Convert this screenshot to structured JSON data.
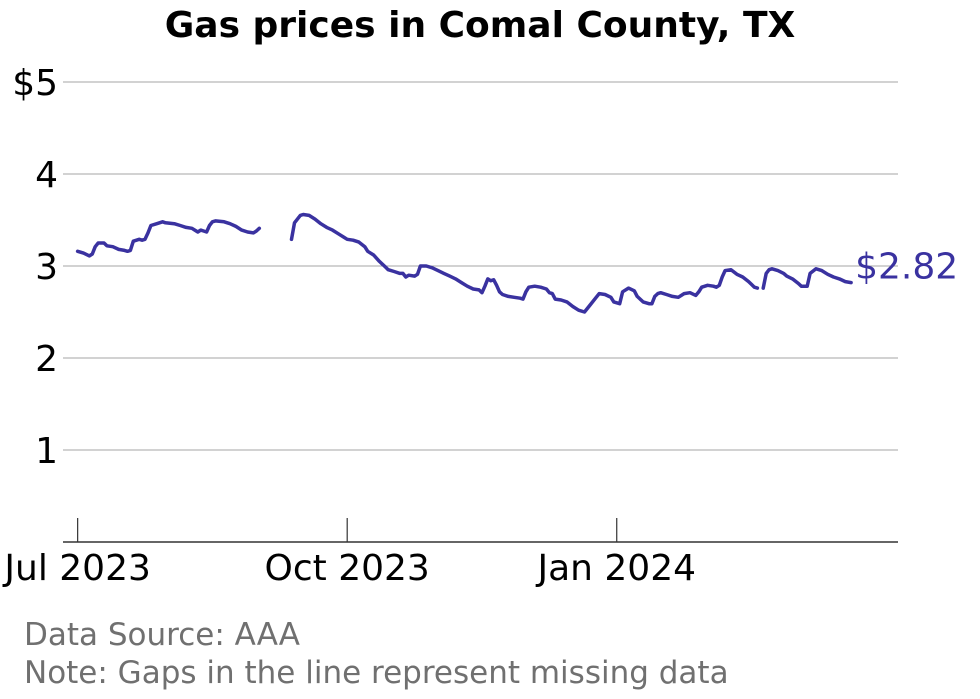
{
  "chart_data": {
    "type": "line",
    "title": "Gas prices in Comal County, TX",
    "xlabel": "",
    "ylabel": "",
    "ylim": [
      0,
      5
    ],
    "xlim": [
      "2023-06-26",
      "2024-04-06"
    ],
    "y_ticks": [
      {
        "value": 1,
        "label": "1"
      },
      {
        "value": 2,
        "label": "2"
      },
      {
        "value": 3,
        "label": "3"
      },
      {
        "value": 4,
        "label": "4"
      },
      {
        "value": 5,
        "label": "$5"
      }
    ],
    "x_ticks": [
      {
        "date": "2023-07-01",
        "label": "Jul 2023"
      },
      {
        "date": "2023-10-01",
        "label": "Oct 2023"
      },
      {
        "date": "2024-01-01",
        "label": "Jan 2024"
      }
    ],
    "grid": true,
    "color": "#3a32a0",
    "end_label": "$2.82",
    "series": [
      {
        "segments": [
          [
            [
              "2023-07-01",
              3.16
            ],
            [
              "2023-07-03",
              3.14
            ],
            [
              "2023-07-05",
              3.11
            ],
            [
              "2023-07-06",
              3.13
            ],
            [
              "2023-07-07",
              3.21
            ],
            [
              "2023-07-08",
              3.25
            ],
            [
              "2023-07-10",
              3.25
            ],
            [
              "2023-07-11",
              3.22
            ],
            [
              "2023-07-13",
              3.21
            ],
            [
              "2023-07-15",
              3.18
            ],
            [
              "2023-07-17",
              3.17
            ],
            [
              "2023-07-18",
              3.16
            ],
            [
              "2023-07-19",
              3.17
            ],
            [
              "2023-07-20",
              3.27
            ],
            [
              "2023-07-22",
              3.29
            ],
            [
              "2023-07-23",
              3.28
            ],
            [
              "2023-07-24",
              3.29
            ],
            [
              "2023-07-25",
              3.36
            ],
            [
              "2023-07-26",
              3.44
            ],
            [
              "2023-07-28",
              3.46
            ],
            [
              "2023-07-30",
              3.48
            ],
            [
              "2023-07-31",
              3.47
            ],
            [
              "2023-08-03",
              3.46
            ],
            [
              "2023-08-05",
              3.44
            ],
            [
              "2023-08-07",
              3.42
            ],
            [
              "2023-08-09",
              3.41
            ],
            [
              "2023-08-10",
              3.39
            ],
            [
              "2023-08-11",
              3.37
            ],
            [
              "2023-08-12",
              3.39
            ],
            [
              "2023-08-13",
              3.38
            ],
            [
              "2023-08-14",
              3.37
            ],
            [
              "2023-08-15",
              3.44
            ],
            [
              "2023-08-16",
              3.48
            ],
            [
              "2023-08-17",
              3.49
            ],
            [
              "2023-08-20",
              3.48
            ],
            [
              "2023-08-22",
              3.46
            ],
            [
              "2023-08-24",
              3.43
            ],
            [
              "2023-08-26",
              3.39
            ],
            [
              "2023-08-28",
              3.37
            ],
            [
              "2023-08-30",
              3.36
            ],
            [
              "2023-08-31",
              3.38
            ],
            [
              "2023-09-01",
              3.41
            ]
          ],
          [
            [
              "2023-09-12",
              3.29
            ],
            [
              "2023-09-13",
              3.47
            ],
            [
              "2023-09-15",
              3.55
            ],
            [
              "2023-09-16",
              3.56
            ],
            [
              "2023-09-18",
              3.55
            ],
            [
              "2023-09-20",
              3.51
            ],
            [
              "2023-09-22",
              3.46
            ],
            [
              "2023-09-24",
              3.42
            ],
            [
              "2023-09-26",
              3.39
            ],
            [
              "2023-09-28",
              3.35
            ],
            [
              "2023-09-30",
              3.31
            ],
            [
              "2023-10-01",
              3.29
            ],
            [
              "2023-10-03",
              3.28
            ],
            [
              "2023-10-05",
              3.26
            ],
            [
              "2023-10-07",
              3.21
            ],
            [
              "2023-10-08",
              3.16
            ],
            [
              "2023-10-10",
              3.12
            ],
            [
              "2023-10-12",
              3.05
            ],
            [
              "2023-10-14",
              2.99
            ],
            [
              "2023-10-15",
              2.96
            ],
            [
              "2023-10-17",
              2.94
            ],
            [
              "2023-10-19",
              2.92
            ],
            [
              "2023-10-20",
              2.92
            ],
            [
              "2023-10-21",
              2.88
            ],
            [
              "2023-10-22",
              2.9
            ],
            [
              "2023-10-24",
              2.89
            ],
            [
              "2023-10-25",
              2.91
            ],
            [
              "2023-10-26",
              3.0
            ],
            [
              "2023-10-28",
              3.0
            ],
            [
              "2023-10-30",
              2.98
            ],
            [
              "2023-11-01",
              2.95
            ],
            [
              "2023-11-03",
              2.92
            ],
            [
              "2023-11-05",
              2.89
            ],
            [
              "2023-11-07",
              2.86
            ],
            [
              "2023-11-09",
              2.82
            ],
            [
              "2023-11-11",
              2.78
            ],
            [
              "2023-11-13",
              2.75
            ],
            [
              "2023-11-15",
              2.74
            ],
            [
              "2023-11-16",
              2.71
            ],
            [
              "2023-11-17",
              2.78
            ],
            [
              "2023-11-18",
              2.86
            ],
            [
              "2023-11-19",
              2.84
            ],
            [
              "2023-11-20",
              2.85
            ],
            [
              "2023-11-21",
              2.79
            ],
            [
              "2023-11-22",
              2.72
            ],
            [
              "2023-11-23",
              2.69
            ],
            [
              "2023-11-25",
              2.67
            ],
            [
              "2023-11-27",
              2.66
            ],
            [
              "2023-11-29",
              2.65
            ],
            [
              "2023-11-30",
              2.64
            ],
            [
              "2023-12-01",
              2.72
            ],
            [
              "2023-12-02",
              2.77
            ],
            [
              "2023-12-04",
              2.78
            ],
            [
              "2023-12-06",
              2.77
            ],
            [
              "2023-12-08",
              2.75
            ],
            [
              "2023-12-09",
              2.71
            ],
            [
              "2023-12-10",
              2.7
            ],
            [
              "2023-12-11",
              2.64
            ],
            [
              "2023-12-13",
              2.63
            ],
            [
              "2023-12-15",
              2.61
            ],
            [
              "2023-12-17",
              2.56
            ],
            [
              "2023-12-19",
              2.52
            ],
            [
              "2023-12-21",
              2.5
            ],
            [
              "2023-12-23",
              2.58
            ],
            [
              "2023-12-25",
              2.66
            ],
            [
              "2023-12-26",
              2.7
            ],
            [
              "2023-12-28",
              2.69
            ],
            [
              "2023-12-30",
              2.66
            ],
            [
              "2023-12-31",
              2.61
            ],
            [
              "2024-01-02",
              2.59
            ],
            [
              "2024-01-03",
              2.72
            ],
            [
              "2024-01-05",
              2.76
            ],
            [
              "2024-01-07",
              2.73
            ],
            [
              "2024-01-08",
              2.67
            ],
            [
              "2024-01-10",
              2.61
            ],
            [
              "2024-01-12",
              2.59
            ],
            [
              "2024-01-13",
              2.59
            ],
            [
              "2024-01-14",
              2.67
            ],
            [
              "2024-01-15",
              2.7
            ],
            [
              "2024-01-16",
              2.71
            ],
            [
              "2024-01-18",
              2.69
            ],
            [
              "2024-01-20",
              2.67
            ],
            [
              "2024-01-22",
              2.66
            ],
            [
              "2024-01-24",
              2.7
            ],
            [
              "2024-01-26",
              2.71
            ],
            [
              "2024-01-28",
              2.68
            ],
            [
              "2024-01-29",
              2.72
            ],
            [
              "2024-01-30",
              2.77
            ],
            [
              "2024-02-01",
              2.79
            ],
            [
              "2024-02-03",
              2.78
            ],
            [
              "2024-02-04",
              2.77
            ],
            [
              "2024-02-05",
              2.79
            ],
            [
              "2024-02-06",
              2.88
            ],
            [
              "2024-02-07",
              2.95
            ],
            [
              "2024-02-09",
              2.96
            ],
            [
              "2024-02-11",
              2.91
            ],
            [
              "2024-02-13",
              2.88
            ],
            [
              "2024-02-15",
              2.83
            ],
            [
              "2024-02-16",
              2.8
            ],
            [
              "2024-02-17",
              2.77
            ],
            [
              "2024-02-18",
              2.76
            ]
          ],
          [
            [
              "2024-02-20",
              2.76
            ],
            [
              "2024-02-21",
              2.92
            ],
            [
              "2024-02-22",
              2.96
            ],
            [
              "2024-02-23",
              2.97
            ],
            [
              "2024-02-25",
              2.95
            ],
            [
              "2024-02-27",
              2.92
            ],
            [
              "2024-02-28",
              2.89
            ],
            [
              "2024-03-01",
              2.86
            ],
            [
              "2024-03-03",
              2.81
            ],
            [
              "2024-03-04",
              2.78
            ],
            [
              "2024-03-06",
              2.78
            ],
            [
              "2024-03-07",
              2.92
            ],
            [
              "2024-03-09",
              2.97
            ],
            [
              "2024-03-11",
              2.95
            ],
            [
              "2024-03-13",
              2.91
            ],
            [
              "2024-03-15",
              2.88
            ],
            [
              "2024-03-17",
              2.86
            ],
            [
              "2024-03-19",
              2.83
            ],
            [
              "2024-03-21",
              2.82
            ]
          ]
        ]
      }
    ]
  },
  "footer": {
    "source": "Data Source: AAA",
    "note": "Note: Gaps in the line represent missing data"
  }
}
